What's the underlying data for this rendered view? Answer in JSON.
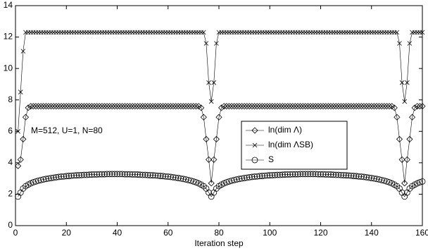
{
  "chart_data": {
    "type": "line",
    "x_label": "Iteration step",
    "annotation": "M=512,  U=1,  N=80",
    "xlim": [
      0,
      160
    ],
    "xticks": [
      0,
      20,
      40,
      60,
      80,
      100,
      120,
      140,
      160
    ],
    "ylim": [
      0,
      14
    ],
    "yticks": [
      0,
      2,
      4,
      6,
      8,
      10,
      12,
      14
    ],
    "x": [
      1,
      2,
      3,
      4,
      5,
      6,
      7,
      8,
      9,
      10,
      11,
      12,
      13,
      14,
      15,
      16,
      17,
      18,
      19,
      20,
      21,
      22,
      23,
      24,
      25,
      26,
      27,
      28,
      29,
      30,
      31,
      32,
      33,
      34,
      35,
      36,
      37,
      38,
      39,
      40,
      41,
      42,
      43,
      44,
      45,
      46,
      47,
      48,
      49,
      50,
      51,
      52,
      53,
      54,
      55,
      56,
      57,
      58,
      59,
      60,
      61,
      62,
      63,
      64,
      65,
      66,
      67,
      68,
      69,
      70,
      71,
      72,
      73,
      74,
      75,
      76,
      77,
      78,
      79,
      80,
      81,
      82,
      83,
      84,
      85,
      86,
      87,
      88,
      89,
      90,
      91,
      92,
      93,
      94,
      95,
      96,
      97,
      98,
      99,
      100,
      101,
      102,
      103,
      104,
      105,
      106,
      107,
      108,
      109,
      110,
      111,
      112,
      113,
      114,
      115,
      116,
      117,
      118,
      119,
      120,
      121,
      122,
      123,
      124,
      125,
      126,
      127,
      128,
      129,
      130,
      131,
      132,
      133,
      134,
      135,
      136,
      137,
      138,
      139,
      140,
      141,
      142,
      143,
      144,
      145,
      146,
      147,
      148,
      149,
      150,
      151,
      152,
      153,
      154,
      155,
      156,
      157,
      158,
      159,
      160
    ],
    "series": [
      {
        "name": "ln(dim Λ)",
        "color": "#000000",
        "marker": "diamond",
        "values": [
          3.8,
          4.2,
          5.5,
          6.9,
          7.5,
          7.6,
          7.6,
          7.6,
          7.6,
          7.6,
          7.6,
          7.6,
          7.6,
          7.6,
          7.6,
          7.6,
          7.6,
          7.6,
          7.6,
          7.6,
          7.6,
          7.6,
          7.6,
          7.6,
          7.6,
          7.6,
          7.6,
          7.6,
          7.6,
          7.6,
          7.6,
          7.6,
          7.6,
          7.6,
          7.6,
          7.6,
          7.6,
          7.6,
          7.6,
          7.6,
          7.6,
          7.6,
          7.6,
          7.6,
          7.6,
          7.6,
          7.6,
          7.6,
          7.6,
          7.6,
          7.6,
          7.6,
          7.6,
          7.6,
          7.6,
          7.6,
          7.6,
          7.6,
          7.6,
          7.6,
          7.6,
          7.6,
          7.6,
          7.6,
          7.6,
          7.6,
          7.6,
          7.6,
          7.6,
          7.6,
          7.6,
          7.6,
          7.5,
          6.9,
          5.5,
          4.2,
          2.7,
          4.2,
          5.5,
          6.9,
          7.5,
          7.6,
          7.6,
          7.6,
          7.6,
          7.6,
          7.6,
          7.6,
          7.6,
          7.6,
          7.6,
          7.6,
          7.6,
          7.6,
          7.6,
          7.6,
          7.6,
          7.6,
          7.6,
          7.6,
          7.6,
          7.6,
          7.6,
          7.6,
          7.6,
          7.6,
          7.6,
          7.6,
          7.6,
          7.6,
          7.6,
          7.6,
          7.6,
          7.6,
          7.6,
          7.6,
          7.6,
          7.6,
          7.6,
          7.6,
          7.6,
          7.6,
          7.6,
          7.6,
          7.6,
          7.6,
          7.6,
          7.6,
          7.6,
          7.6,
          7.6,
          7.6,
          7.6,
          7.6,
          7.6,
          7.6,
          7.6,
          7.6,
          7.6,
          7.6,
          7.6,
          7.6,
          7.6,
          7.6,
          7.6,
          7.6,
          7.6,
          7.6,
          7.5,
          6.9,
          5.5,
          4.2,
          2.7,
          4.2,
          5.5,
          6.9,
          7.5,
          7.6,
          7.6,
          7.6
        ]
      },
      {
        "name": "ln(dim ΛSB)",
        "color": "#000000",
        "marker": "cross",
        "values": [
          6.0,
          8.5,
          11.1,
          12.3,
          12.3,
          12.3,
          12.3,
          12.3,
          12.3,
          12.3,
          12.3,
          12.3,
          12.3,
          12.3,
          12.3,
          12.3,
          12.3,
          12.3,
          12.3,
          12.3,
          12.3,
          12.3,
          12.3,
          12.3,
          12.3,
          12.3,
          12.3,
          12.3,
          12.3,
          12.3,
          12.3,
          12.3,
          12.3,
          12.3,
          12.3,
          12.3,
          12.3,
          12.3,
          12.3,
          12.3,
          12.3,
          12.3,
          12.3,
          12.3,
          12.3,
          12.3,
          12.3,
          12.3,
          12.3,
          12.3,
          12.3,
          12.3,
          12.3,
          12.3,
          12.3,
          12.3,
          12.3,
          12.3,
          12.3,
          12.3,
          12.3,
          12.3,
          12.3,
          12.3,
          12.3,
          12.3,
          12.3,
          12.3,
          12.3,
          12.3,
          12.3,
          12.3,
          12.3,
          12.3,
          11.6,
          9.1,
          7.9,
          9.1,
          11.6,
          12.3,
          12.3,
          12.3,
          12.3,
          12.3,
          12.3,
          12.3,
          12.3,
          12.3,
          12.3,
          12.3,
          12.3,
          12.3,
          12.3,
          12.3,
          12.3,
          12.3,
          12.3,
          12.3,
          12.3,
          12.3,
          12.3,
          12.3,
          12.3,
          12.3,
          12.3,
          12.3,
          12.3,
          12.3,
          12.3,
          12.3,
          12.3,
          12.3,
          12.3,
          12.3,
          12.3,
          12.3,
          12.3,
          12.3,
          12.3,
          12.3,
          12.3,
          12.3,
          12.3,
          12.3,
          12.3,
          12.3,
          12.3,
          12.3,
          12.3,
          12.3,
          12.3,
          12.3,
          12.3,
          12.3,
          12.3,
          12.3,
          12.3,
          12.3,
          12.3,
          12.3,
          12.3,
          12.3,
          12.3,
          12.3,
          12.3,
          12.3,
          12.3,
          12.3,
          12.3,
          12.3,
          11.6,
          9.1,
          7.9,
          9.1,
          11.6,
          12.3,
          12.3,
          12.3,
          12.3,
          12.3
        ]
      },
      {
        "name": "S",
        "color": "#000000",
        "marker": "circle",
        "values": [
          1.85,
          2.1,
          2.36,
          2.51,
          2.61,
          2.69,
          2.76,
          2.81,
          2.86,
          2.9,
          2.94,
          2.97,
          3.0,
          3.03,
          3.05,
          3.08,
          3.1,
          3.12,
          3.13,
          3.15,
          3.16,
          3.18,
          3.19,
          3.2,
          3.21,
          3.22,
          3.23,
          3.23,
          3.24,
          3.25,
          3.26,
          3.26,
          3.27,
          3.27,
          3.27,
          3.28,
          3.28,
          3.28,
          3.28,
          3.28,
          3.28,
          3.28,
          3.27,
          3.27,
          3.27,
          3.26,
          3.26,
          3.25,
          3.24,
          3.23,
          3.23,
          3.22,
          3.21,
          3.2,
          3.19,
          3.18,
          3.16,
          3.15,
          3.13,
          3.12,
          3.1,
          3.08,
          3.05,
          3.03,
          3.0,
          2.97,
          2.94,
          2.9,
          2.86,
          2.81,
          2.76,
          2.69,
          2.61,
          2.51,
          2.36,
          2.1,
          1.85,
          2.1,
          2.36,
          2.51,
          2.61,
          2.69,
          2.76,
          2.81,
          2.86,
          2.9,
          2.94,
          2.97,
          3.0,
          3.03,
          3.05,
          3.08,
          3.1,
          3.12,
          3.13,
          3.15,
          3.16,
          3.18,
          3.19,
          3.2,
          3.21,
          3.22,
          3.23,
          3.23,
          3.24,
          3.25,
          3.26,
          3.26,
          3.27,
          3.27,
          3.27,
          3.28,
          3.28,
          3.28,
          3.28,
          3.28,
          3.28,
          3.28,
          3.27,
          3.27,
          3.27,
          3.26,
          3.26,
          3.25,
          3.24,
          3.23,
          3.23,
          3.22,
          3.21,
          3.2,
          3.19,
          3.18,
          3.16,
          3.15,
          3.13,
          3.12,
          3.1,
          3.08,
          3.05,
          3.03,
          3.0,
          2.97,
          2.94,
          2.9,
          2.86,
          2.81,
          2.76,
          2.69,
          2.61,
          2.51,
          2.36,
          2.1,
          1.85,
          2.1,
          2.36,
          2.51,
          2.61,
          2.69,
          2.76,
          2.81
        ]
      }
    ]
  }
}
